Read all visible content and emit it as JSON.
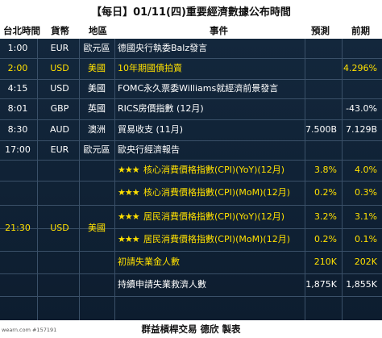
{
  "title": "【每日】01/11(四)重要經濟數據公布時間",
  "headers": {
    "time": "台北時間",
    "currency": "貨幣",
    "region": "地區",
    "event": "事件",
    "forecast": "預測",
    "previous": "前期"
  },
  "rows": [
    {
      "time": "1:00",
      "currency": "EUR",
      "region": "歐元區",
      "stars": "",
      "event": "德國央行執委Balz發言",
      "forecast": "",
      "previous": "",
      "highlight": false
    },
    {
      "time": "2:00",
      "currency": "USD",
      "region": "美國",
      "stars": "",
      "event": "10年期國債拍賣",
      "forecast": "",
      "previous": "4.296%",
      "highlight": true
    },
    {
      "time": "4:15",
      "currency": "USD",
      "region": "美國",
      "stars": "",
      "event": "FOMC永久票委Williams就經濟前景發言",
      "forecast": "",
      "previous": "",
      "highlight": false
    },
    {
      "time": "8:01",
      "currency": "GBP",
      "region": "英國",
      "stars": "",
      "event": "RICS房價指數 (12月)",
      "forecast": "",
      "previous": "-43.0%",
      "highlight": false
    },
    {
      "time": "8:30",
      "currency": "AUD",
      "region": "澳洲",
      "stars": "",
      "event": "貿易收支 (11月)",
      "forecast": "7.500B",
      "previous": "7.129B",
      "highlight": false
    },
    {
      "time": "17:00",
      "currency": "EUR",
      "region": "歐元區",
      "stars": "",
      "event": "歐央行經濟報告",
      "forecast": "",
      "previous": "",
      "highlight": false
    },
    {
      "time": "21:30",
      "currency": "USD",
      "region": "美國",
      "stars": "★★★",
      "event": "核心消費價格指數(CPI)(YoY)(12月)",
      "forecast": "3.8%",
      "previous": "4.0%",
      "highlight": true
    },
    {
      "time": "",
      "currency": "",
      "region": "",
      "stars": "★★★",
      "event": "核心消費價格指數(CPI)(MoM)(12月)",
      "forecast": "0.2%",
      "previous": "0.3%",
      "highlight": true
    },
    {
      "time": "",
      "currency": "",
      "region": "",
      "stars": "★★★",
      "event": "居民消費價格指數(CPI)(YoY)(12月)",
      "forecast": "3.2%",
      "previous": "3.1%",
      "highlight": true
    },
    {
      "time": "",
      "currency": "",
      "region": "",
      "stars": "★★★",
      "event": "居民消費價格指數(CPI)(MoM)(12月)",
      "forecast": "0.2%",
      "previous": "0.1%",
      "highlight": true
    },
    {
      "time": "",
      "currency": "",
      "region": "",
      "stars": "",
      "event": "初請失業金人數",
      "forecast": "210K",
      "previous": "202K",
      "highlight": true
    },
    {
      "time": "",
      "currency": "",
      "region": "",
      "stars": "",
      "event": "持續申請失業救濟人數",
      "forecast": "1,875K",
      "previous": "1,855K",
      "highlight": false
    }
  ],
  "footer": {
    "brand": "群益槓桿交易 德欣 製表",
    "tag": "wearn.com #157191"
  },
  "colors": {
    "board": "#13273c",
    "grid": "#3a5068",
    "highlight": "#ffe000",
    "text": "#ffffff"
  }
}
